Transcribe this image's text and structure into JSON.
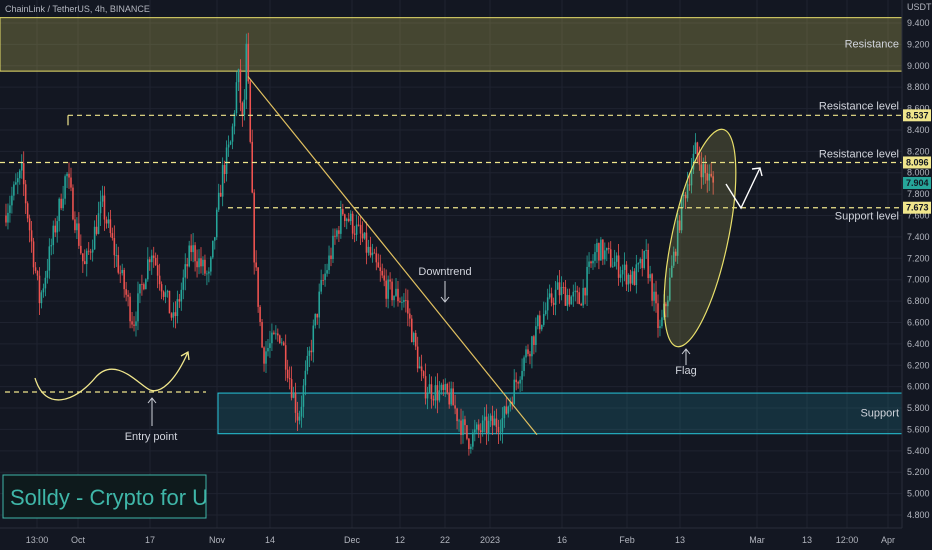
{
  "header": {
    "title": "ChainLink / TetherUS, 4h, BINANCE",
    "currency": "USDT"
  },
  "brand": {
    "text": "Solldy - Crypto for U"
  },
  "colors": {
    "background": "#131722",
    "up": "#26a69a",
    "down": "#ef5350",
    "resistance_zone": "#c9c25a",
    "support_zone": "#1e8fa0",
    "annotation": "#f0e68c",
    "grid": "#1f2330"
  },
  "chart_data": {
    "type": "candlestick",
    "y_axis": {
      "min": 4.7,
      "max": 9.5,
      "ticks": [
        "4.800",
        "5.000",
        "5.200",
        "5.400",
        "5.600",
        "5.800",
        "6.000",
        "6.200",
        "6.400",
        "6.600",
        "6.800",
        "7.000",
        "7.200",
        "7.400",
        "7.600",
        "7.800",
        "8.000",
        "8.200",
        "8.400",
        "8.600",
        "8.800",
        "9.000",
        "9.200",
        "9.400"
      ]
    },
    "x_axis": {
      "ticks": [
        "13:00",
        "Oct",
        "17",
        "Nov",
        "14",
        "Dec",
        "12",
        "22",
        "2023",
        "16",
        "Feb",
        "13",
        "Mar",
        "13",
        "12:00",
        "Apr"
      ]
    },
    "price_badges": [
      {
        "value": "8.537",
        "color": "#f0e68c"
      },
      {
        "value": "8.096",
        "color": "#f0e68c"
      },
      {
        "value": "7.904",
        "color": "#26a69a"
      },
      {
        "value": "7.673",
        "color": "#f0e68c"
      }
    ],
    "levels": [
      {
        "label": "Resistance level",
        "price": 8.537
      },
      {
        "label": "Resistance level",
        "price": 8.096
      },
      {
        "label": "Support level",
        "price": 7.673
      }
    ],
    "zones": [
      {
        "label": "Resistance",
        "from": 8.95,
        "to": 9.45
      },
      {
        "label": "Support",
        "from": 5.56,
        "to": 5.94
      }
    ],
    "annotations": [
      {
        "label": "Entry point"
      },
      {
        "label": "Downtrend"
      },
      {
        "label": "Flag"
      }
    ],
    "anchors": [
      {
        "t": 0.0,
        "p": 7.6
      },
      {
        "t": 0.02,
        "p": 8.0
      },
      {
        "t": 0.04,
        "p": 6.8
      },
      {
        "t": 0.07,
        "p": 8.0
      },
      {
        "t": 0.09,
        "p": 7.1
      },
      {
        "t": 0.11,
        "p": 7.7
      },
      {
        "t": 0.145,
        "p": 6.6
      },
      {
        "t": 0.165,
        "p": 7.3
      },
      {
        "t": 0.19,
        "p": 6.6
      },
      {
        "t": 0.21,
        "p": 7.3
      },
      {
        "t": 0.23,
        "p": 7.0
      },
      {
        "t": 0.245,
        "p": 8.0
      },
      {
        "t": 0.255,
        "p": 8.3
      },
      {
        "t": 0.262,
        "p": 8.95
      },
      {
        "t": 0.268,
        "p": 8.4
      },
      {
        "t": 0.272,
        "p": 9.2
      },
      {
        "t": 0.28,
        "p": 7.3
      },
      {
        "t": 0.29,
        "p": 6.3
      },
      {
        "t": 0.31,
        "p": 6.5
      },
      {
        "t": 0.33,
        "p": 5.7
      },
      {
        "t": 0.355,
        "p": 6.9
      },
      {
        "t": 0.38,
        "p": 7.65
      },
      {
        "t": 0.4,
        "p": 7.4
      },
      {
        "t": 0.43,
        "p": 6.9
      },
      {
        "t": 0.45,
        "p": 6.8
      },
      {
        "t": 0.47,
        "p": 6.0
      },
      {
        "t": 0.5,
        "p": 5.9
      },
      {
        "t": 0.52,
        "p": 5.5
      },
      {
        "t": 0.535,
        "p": 5.6
      },
      {
        "t": 0.56,
        "p": 5.7
      },
      {
        "t": 0.58,
        "p": 6.2
      },
      {
        "t": 0.6,
        "p": 6.6
      },
      {
        "t": 0.62,
        "p": 6.9
      },
      {
        "t": 0.645,
        "p": 6.8
      },
      {
        "t": 0.665,
        "p": 7.3
      },
      {
        "t": 0.685,
        "p": 7.15
      },
      {
        "t": 0.705,
        "p": 7.0
      },
      {
        "t": 0.72,
        "p": 7.2
      },
      {
        "t": 0.735,
        "p": 6.5
      },
      {
        "t": 0.745,
        "p": 6.9
      },
      {
        "t": 0.76,
        "p": 7.7
      },
      {
        "t": 0.775,
        "p": 8.2
      },
      {
        "t": 0.785,
        "p": 8.0
      },
      {
        "t": 0.795,
        "p": 7.9
      }
    ]
  }
}
